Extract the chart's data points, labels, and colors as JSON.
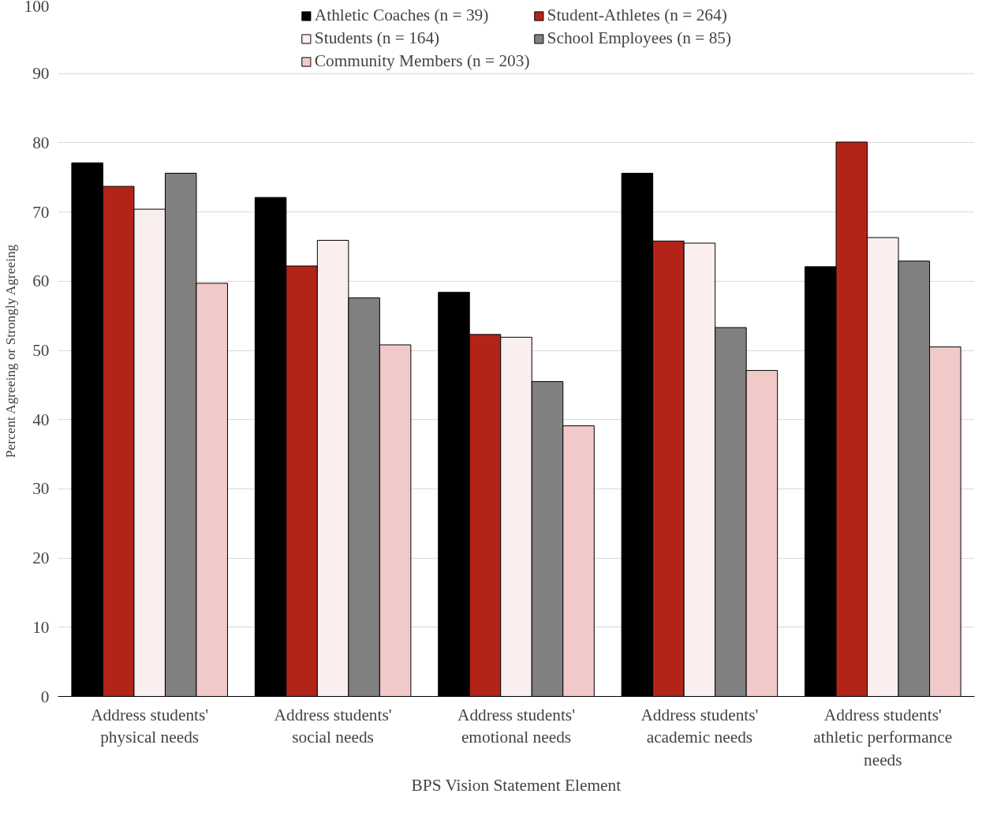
{
  "chart_data": {
    "type": "bar",
    "xlabel": "BPS Vision Statement Element",
    "ylabel": "Percent Agreeing or Strongly Agreeing",
    "categories": [
      "Address students' physical needs",
      "Address students' social needs",
      "Address students' emotional needs",
      "Address students' academic needs",
      "Address students' athletic performance needs"
    ],
    "series": [
      {
        "name": "Athletic Coaches (n = 39)",
        "color": "#000000",
        "values": [
          77.1,
          72.1,
          58.4,
          75.6,
          62.1
        ]
      },
      {
        "name": "Student-Athletes (n = 264)",
        "color": "#b22418",
        "values": [
          73.7,
          62.2,
          52.3,
          65.8,
          80.1
        ]
      },
      {
        "name": "Students (n = 164)",
        "color": "#fbeeee",
        "values": [
          70.4,
          65.9,
          51.9,
          65.5,
          66.3
        ]
      },
      {
        "name": "School Employees (n = 85)",
        "color": "#808080",
        "values": [
          75.6,
          57.6,
          45.5,
          53.3,
          62.9
        ]
      },
      {
        "name": "Community Members (n = 203)",
        "color": "#f2c9c9",
        "values": [
          59.7,
          50.8,
          39.1,
          47.1,
          50.5
        ]
      }
    ],
    "ylim": [
      0,
      100
    ],
    "yticks": [
      0,
      10,
      20,
      30,
      40,
      50,
      60,
      70,
      80,
      90,
      100
    ],
    "grid": "y",
    "legend": "top"
  }
}
